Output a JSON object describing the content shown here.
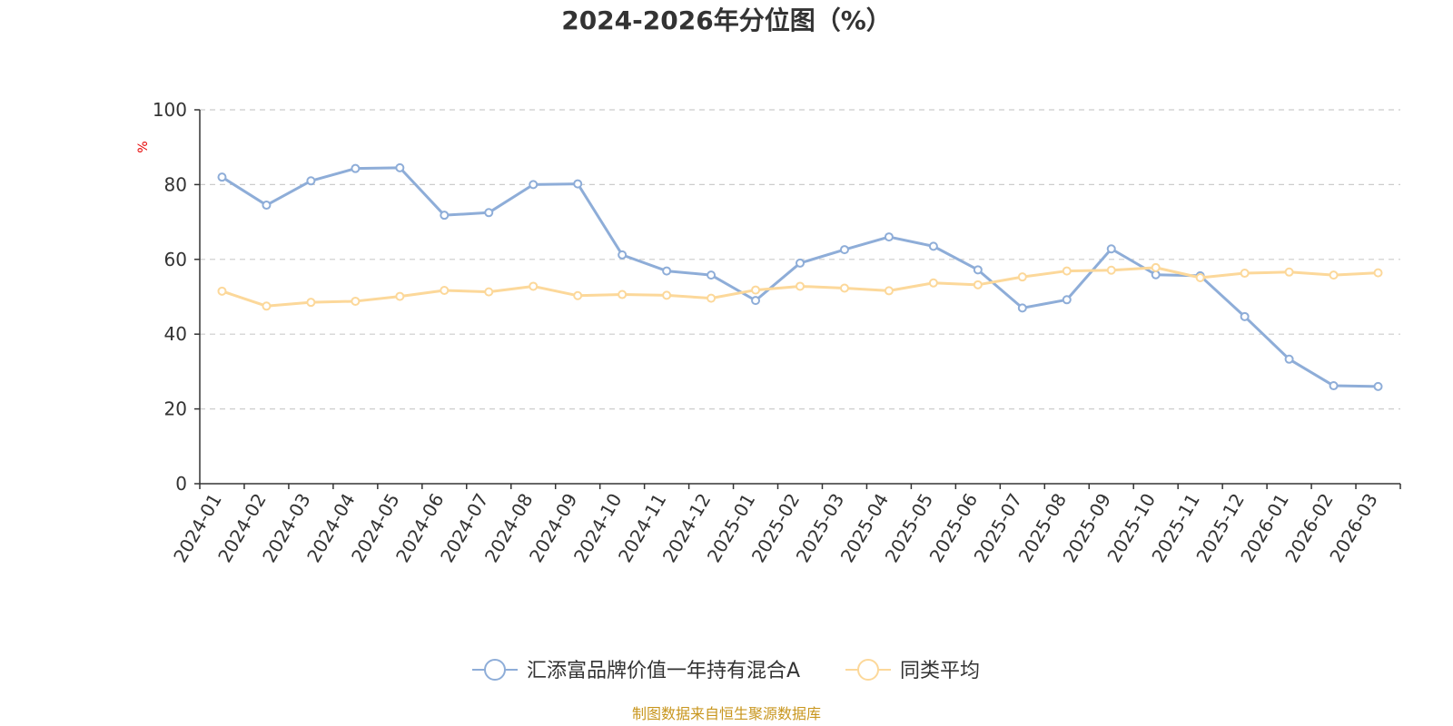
{
  "chart_data": {
    "type": "line",
    "title": "2024-2026年分位图（%）",
    "ylabel": "%",
    "ylim": [
      0,
      100
    ],
    "yticks": [
      0,
      20,
      40,
      60,
      80,
      100
    ],
    "grid": true,
    "legend_position": "bottom",
    "categories": [
      "2024-01",
      "2024-02",
      "2024-03",
      "2024-04",
      "2024-05",
      "2024-06",
      "2024-07",
      "2024-08",
      "2024-09",
      "2024-10",
      "2024-11",
      "2024-12",
      "2025-01",
      "2025-02",
      "2025-03",
      "2025-04",
      "2025-05",
      "2025-06",
      "2025-07",
      "2025-08",
      "2025-09",
      "2025-10",
      "2025-11",
      "2025-12",
      "2026-01",
      "2026-02",
      "2026-03"
    ],
    "series": [
      {
        "name": "汇添富品牌价值一年持有混合A",
        "color": "#8eadd8",
        "values": [
          82,
          74.5,
          81,
          84.3,
          84.5,
          71.8,
          72.5,
          80,
          80.2,
          61.2,
          56.9,
          55.8,
          49,
          59,
          62.6,
          66,
          63.5,
          57.2,
          47,
          49.2,
          62.8,
          55.9,
          55.6,
          44.7,
          33.3,
          26.2,
          26
        ]
      },
      {
        "name": "同类平均",
        "color": "#fcd89a",
        "values": [
          51.5,
          47.5,
          48.5,
          48.8,
          50.1,
          51.7,
          51.3,
          52.8,
          50.3,
          50.6,
          50.4,
          49.6,
          51.8,
          52.8,
          52.3,
          51.6,
          53.7,
          53.2,
          55.3,
          56.9,
          57.1,
          57.8,
          55.1,
          56.3,
          56.6,
          55.8,
          56.4
        ]
      }
    ],
    "source": "制图数据来自恒生聚源数据库"
  }
}
